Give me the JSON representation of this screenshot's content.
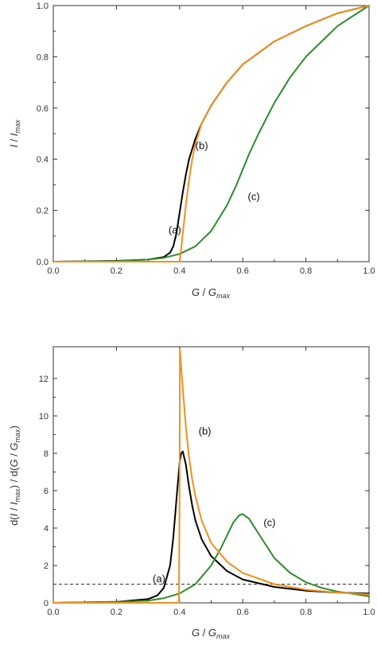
{
  "chart_data": [
    {
      "type": "line",
      "xlabel_main": "G",
      "xlabel_denom": "G",
      "xlabel_sub": "max",
      "ylabel_main": "I",
      "ylabel_denom": "I",
      "ylabel_sub": "max",
      "xlim": [
        0,
        1
      ],
      "ylim": [
        0,
        1
      ],
      "xticks": [
        "0.0",
        "0.2",
        "0.4",
        "0.6",
        "0.8",
        "1.0"
      ],
      "yticks": [
        "0.0",
        "0.2",
        "0.4",
        "0.6",
        "0.8",
        "1.0"
      ],
      "grid": false,
      "series": [
        {
          "label": "(a)",
          "color": "#000000",
          "x": [
            0.0,
            0.2,
            0.3,
            0.35,
            0.37,
            0.38,
            0.39,
            0.395,
            0.4,
            0.405,
            0.41,
            0.42,
            0.43,
            0.44,
            0.45,
            0.47,
            0.5,
            0.55,
            0.6,
            0.7,
            0.8,
            0.9,
            1.0
          ],
          "y": [
            0.0,
            0.003,
            0.008,
            0.018,
            0.035,
            0.06,
            0.11,
            0.15,
            0.19,
            0.23,
            0.27,
            0.34,
            0.4,
            0.44,
            0.48,
            0.54,
            0.61,
            0.7,
            0.77,
            0.86,
            0.92,
            0.97,
            1.0
          ]
        },
        {
          "label": "(b)",
          "color": "#f0901e",
          "x": [
            0.0,
            0.2,
            0.3,
            0.35,
            0.38,
            0.395,
            0.4,
            0.405,
            0.41,
            0.42,
            0.43,
            0.44,
            0.45,
            0.47,
            0.5,
            0.55,
            0.6,
            0.7,
            0.8,
            0.9,
            1.0
          ],
          "y": [
            0.0,
            0.0,
            0.0,
            0.0,
            0.0,
            0.0,
            0.0,
            0.05,
            0.11,
            0.22,
            0.32,
            0.4,
            0.46,
            0.54,
            0.61,
            0.7,
            0.77,
            0.86,
            0.92,
            0.97,
            1.0
          ]
        },
        {
          "label": "(c)",
          "color": "#2e8b2e",
          "x": [
            0.0,
            0.2,
            0.3,
            0.35,
            0.4,
            0.45,
            0.5,
            0.55,
            0.58,
            0.6,
            0.62,
            0.65,
            0.7,
            0.75,
            0.8,
            0.85,
            0.9,
            0.95,
            1.0
          ],
          "y": [
            0.0,
            0.002,
            0.008,
            0.015,
            0.03,
            0.06,
            0.12,
            0.22,
            0.3,
            0.36,
            0.42,
            0.5,
            0.62,
            0.72,
            0.8,
            0.86,
            0.92,
            0.96,
            1.0
          ]
        }
      ],
      "annotations": [
        {
          "text": "(a)",
          "x": 0.385,
          "y": 0.11
        },
        {
          "text": "(b)",
          "x": 0.47,
          "y": 0.44
        },
        {
          "text": "(c)",
          "x": 0.635,
          "y": 0.24
        }
      ]
    },
    {
      "type": "line",
      "xlabel_main": "G",
      "xlabel_denom": "G",
      "xlabel_sub": "max",
      "ylabel_prefix": "d(",
      "ylabel_main": "I",
      "ylabel_denom": "I",
      "ylabel_sub": "max",
      "ylabel_mid": ") / d(",
      "ylabel_main2": "G",
      "ylabel_denom2": "G",
      "ylabel_sub2": "max",
      "ylabel_suffix": ")",
      "xlim": [
        0,
        1
      ],
      "ylim": [
        0,
        13.7
      ],
      "xticks": [
        "0.0",
        "0.2",
        "0.4",
        "0.6",
        "0.8",
        "1.0"
      ],
      "yticks": [
        "0",
        "2",
        "4",
        "6",
        "8",
        "10",
        "12"
      ],
      "grid": false,
      "reference_line": {
        "y": 1,
        "style": "dashed"
      },
      "series": [
        {
          "label": "(a)",
          "color": "#000000",
          "x": [
            0.0,
            0.2,
            0.3,
            0.33,
            0.35,
            0.37,
            0.38,
            0.39,
            0.4,
            0.405,
            0.41,
            0.42,
            0.43,
            0.44,
            0.45,
            0.47,
            0.5,
            0.55,
            0.6,
            0.7,
            0.8,
            0.9,
            1.0
          ],
          "y": [
            0.0,
            0.05,
            0.2,
            0.4,
            0.8,
            2.0,
            3.5,
            5.5,
            7.5,
            8.0,
            8.1,
            7.4,
            6.2,
            5.2,
            4.4,
            3.4,
            2.5,
            1.7,
            1.25,
            0.85,
            0.65,
            0.55,
            0.5
          ]
        },
        {
          "label": "(b)",
          "color": "#f0901e",
          "x": [
            0.0,
            0.3,
            0.398,
            0.4,
            0.401,
            0.405,
            0.41,
            0.42,
            0.43,
            0.44,
            0.45,
            0.47,
            0.5,
            0.55,
            0.6,
            0.7,
            0.8,
            0.9,
            1.0
          ],
          "y": [
            0.0,
            0.0,
            0.0,
            6.0,
            13.6,
            12.6,
            11.5,
            9.4,
            7.8,
            6.6,
            5.7,
            4.4,
            3.2,
            2.2,
            1.6,
            1.0,
            0.7,
            0.55,
            0.45
          ]
        },
        {
          "label": "(c)",
          "color": "#2e8b2e",
          "x": [
            0.0,
            0.2,
            0.3,
            0.35,
            0.4,
            0.45,
            0.5,
            0.53,
            0.55,
            0.57,
            0.59,
            0.6,
            0.62,
            0.65,
            0.7,
            0.75,
            0.8,
            0.85,
            0.9,
            1.0
          ],
          "y": [
            0.0,
            0.05,
            0.12,
            0.25,
            0.5,
            1.0,
            2.0,
            2.9,
            3.6,
            4.3,
            4.7,
            4.75,
            4.5,
            3.7,
            2.4,
            1.6,
            1.1,
            0.8,
            0.6,
            0.35
          ]
        }
      ],
      "annotations": [
        {
          "text": "(a)",
          "x": 0.335,
          "y": 1.1
        },
        {
          "text": "(b)",
          "x": 0.48,
          "y": 9.0
        },
        {
          "text": "(c)",
          "x": 0.685,
          "y": 4.1
        }
      ]
    }
  ]
}
